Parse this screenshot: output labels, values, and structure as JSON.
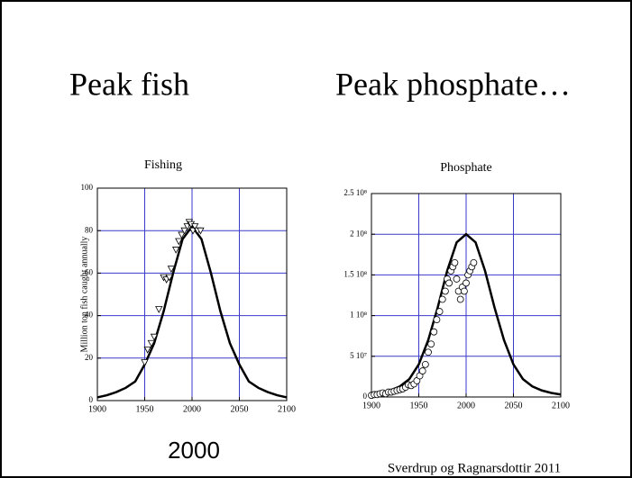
{
  "slide": {
    "headings": [
      "Peak fish",
      "Peak phosphate…"
    ],
    "caption": "2000",
    "citation": "Sverdrup og Ragnarsdottir 2011"
  },
  "chart_data": [
    {
      "type": "scatter",
      "title": "Fishing",
      "ylabel": "Million ton fish caught annually",
      "xlim": [
        1900,
        2100
      ],
      "xticks": [
        1900,
        1950,
        2000,
        2050,
        2100
      ],
      "ylim": [
        0,
        100
      ],
      "yticks": [
        0,
        20,
        40,
        60,
        80,
        100
      ],
      "grid": true,
      "grid_color": "#3a3acc",
      "series": [
        {
          "style": "line",
          "color": "#000000",
          "x": [
            1900,
            1910,
            1920,
            1930,
            1940,
            1950,
            1960,
            1970,
            1980,
            1990,
            2000,
            2010,
            2020,
            2030,
            2040,
            2050,
            2060,
            2070,
            2080,
            2090,
            2100
          ],
          "values": [
            1.5,
            2.5,
            4,
            6,
            9,
            17,
            27,
            42,
            60,
            76,
            82,
            76,
            60,
            42,
            27,
            17,
            9,
            6,
            4,
            2.5,
            1.5
          ]
        },
        {
          "style": "markers",
          "marker": "triangle",
          "color": "#000000",
          "x": [
            1950,
            1953,
            1957,
            1960,
            1965,
            1970,
            1973,
            1976,
            1978,
            1983,
            1986,
            1989,
            1992,
            1995,
            1997,
            1999,
            2001,
            2003,
            2006,
            2009
          ],
          "values": [
            18,
            24,
            27,
            30,
            43,
            58,
            57,
            58,
            62,
            71,
            75,
            78,
            80,
            82,
            84,
            83,
            80,
            82,
            80,
            80
          ]
        }
      ]
    },
    {
      "type": "scatter",
      "title": "Phosphate",
      "xlim": [
        1900,
        2100
      ],
      "xticks": [
        1900,
        1950,
        2000,
        2050,
        2100
      ],
      "ylim": [
        0,
        250000000
      ],
      "yticks": [
        0,
        {
          "value": 50000000,
          "label": "5 10⁷"
        },
        {
          "value": 100000000,
          "label": "1 10⁸"
        },
        {
          "value": 150000000,
          "label": "1.5 10⁸"
        },
        {
          "value": 200000000,
          "label": "2 10⁸"
        },
        {
          "value": 250000000,
          "label": "2.5 10⁸"
        }
      ],
      "grid": true,
      "grid_color": "#3a3acc",
      "series": [
        {
          "style": "line",
          "color": "#000000",
          "x": [
            1900,
            1910,
            1920,
            1930,
            1940,
            1950,
            1960,
            1970,
            1980,
            1990,
            2000,
            2010,
            2020,
            2030,
            2040,
            2050,
            2060,
            2070,
            2080,
            2090,
            2100
          ],
          "values": [
            3000000,
            5000000,
            8000000,
            13000000,
            22000000,
            40000000,
            70000000,
            110000000,
            155000000,
            190000000,
            200000000,
            190000000,
            155000000,
            110000000,
            70000000,
            40000000,
            22000000,
            13000000,
            8000000,
            5000000,
            3000000
          ]
        },
        {
          "style": "markers",
          "marker": "circle",
          "color": "#000000",
          "x": [
            1900,
            1903,
            1906,
            1909,
            1912,
            1915,
            1918,
            1921,
            1924,
            1927,
            1930,
            1933,
            1936,
            1939,
            1942,
            1945,
            1948,
            1951,
            1954,
            1957,
            1960,
            1963,
            1966,
            1969,
            1972,
            1975,
            1978,
            1980,
            1982,
            1984,
            1986,
            1988,
            1990,
            1992,
            1994,
            1996,
            1998,
            2000,
            2002,
            2004,
            2006,
            2008
          ],
          "values": [
            2000000,
            3000000,
            3000000,
            4000000,
            5000000,
            4000000,
            6000000,
            6000000,
            7000000,
            8000000,
            9000000,
            10000000,
            12000000,
            15000000,
            14000000,
            16000000,
            20000000,
            26000000,
            32000000,
            40000000,
            55000000,
            65000000,
            80000000,
            95000000,
            105000000,
            120000000,
            130000000,
            145000000,
            140000000,
            155000000,
            160000000,
            165000000,
            145000000,
            130000000,
            120000000,
            135000000,
            130000000,
            140000000,
            150000000,
            155000000,
            160000000,
            165000000
          ]
        }
      ]
    }
  ]
}
